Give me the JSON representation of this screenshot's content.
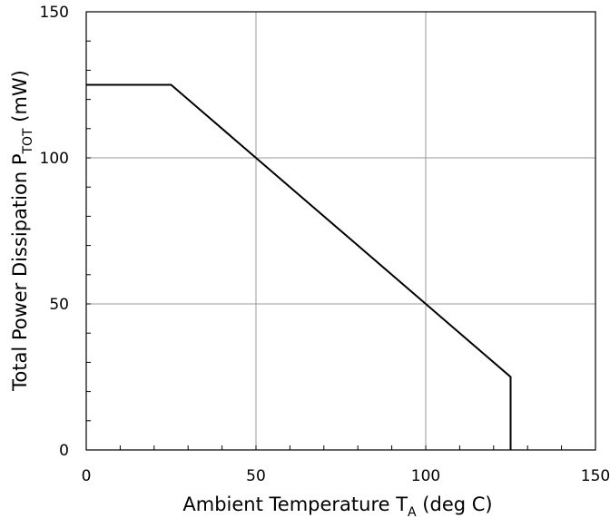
{
  "chart_data": {
    "type": "line",
    "xlabel": {
      "main": "Ambient Temperature T",
      "sub": "A",
      "suffix": " (deg C)"
    },
    "ylabel": {
      "main": "Total Power Dissipation P",
      "sub": "TOT",
      "suffix": " (mW)"
    },
    "xlim": [
      0,
      150
    ],
    "ylim": [
      0,
      150
    ],
    "x_ticks": [
      0,
      50,
      100,
      150
    ],
    "y_ticks": [
      0,
      50,
      100,
      150
    ],
    "x_tick_labels": [
      "0",
      "50",
      "100",
      "150"
    ],
    "y_tick_labels": [
      "0",
      "50",
      "100",
      "150"
    ],
    "minor_tick_step": 10,
    "grid": true,
    "series": [
      {
        "x": [
          0,
          25,
          125,
          125
        ],
        "y": [
          125,
          125,
          25,
          0
        ],
        "color": "#000000"
      }
    ]
  }
}
